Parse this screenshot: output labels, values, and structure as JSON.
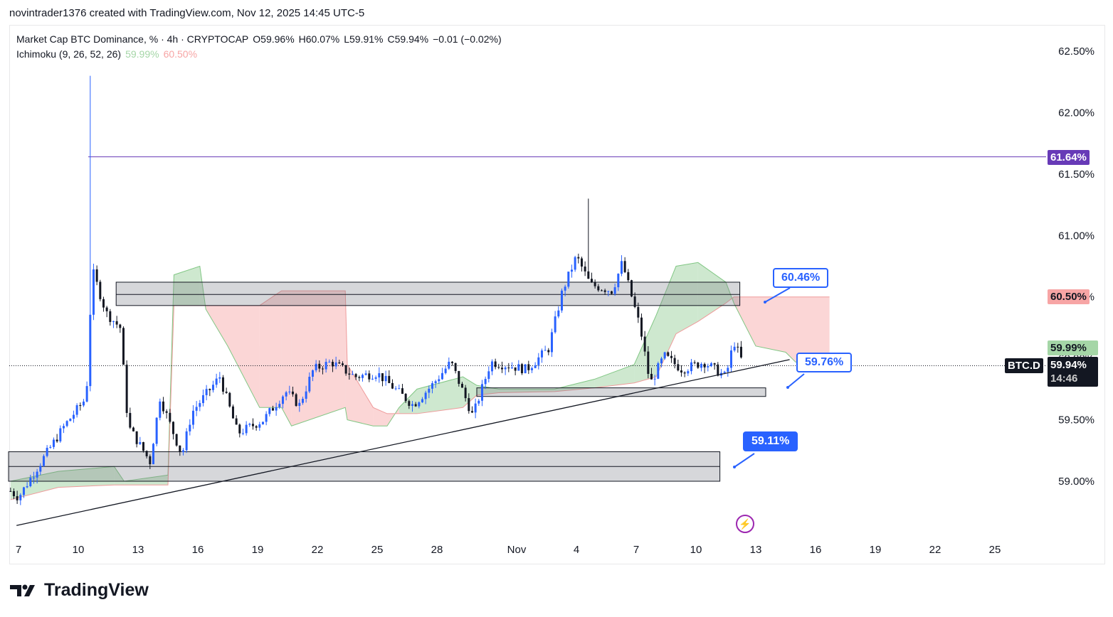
{
  "header": "novintrader1376 created with TradingView.com, Nov 12, 2025 14:45 UTC-5",
  "legend": {
    "symbol": "Market Cap BTC Dominance, % · 4h · CRYPTOCAP",
    "open": "O59.96%",
    "high": "H60.07%",
    "low": "L59.91%",
    "close": "C59.94%",
    "change": "−0.01 (−0.02%)",
    "indicator": "Ichimoku (9, 26, 52, 26)",
    "span_a": "59.99%",
    "span_b": "60.50%"
  },
  "tags": {
    "purple_line": "61.64%",
    "span_b": "60.50%",
    "span_a": "59.99%",
    "symbol": "BTC.D",
    "last": "59.94%",
    "countdown": "14:46"
  },
  "callouts": {
    "c1": "60.46%",
    "c2": "59.76%",
    "c3": "59.11%"
  },
  "logo": "TradingView",
  "colors": {
    "up": "#2962ff",
    "down": "#131722",
    "cloud_green": "#a5d6a7",
    "cloud_red": "#f7b5b5",
    "purple": "#673ab7",
    "accent": "#2962ff"
  },
  "chart_data": {
    "type": "candlestick",
    "yaxis": {
      "ticks": [
        "62.50%",
        "62.00%",
        "61.50%",
        "61.00%",
        "60.50%",
        "60.00%",
        "59.50%",
        "59.00%"
      ],
      "tick_values": [
        62.5,
        62.0,
        61.5,
        61.0,
        60.5,
        60.0,
        59.5,
        59.0
      ],
      "range": [
        58.6,
        62.6
      ]
    },
    "xaxis": {
      "labels": [
        "7",
        "10",
        "13",
        "16",
        "19",
        "22",
        "25",
        "28",
        "Nov",
        "4",
        "7",
        "10",
        "13",
        "16",
        "19",
        "22",
        "25"
      ],
      "label_days": [
        0,
        3,
        6,
        9,
        12,
        15,
        18,
        21,
        25,
        28,
        31,
        34,
        37,
        40,
        43,
        46,
        49
      ],
      "note": "days since Oct 7"
    },
    "close_path": [
      [
        -0.4,
        58.92
      ],
      [
        0,
        58.87
      ],
      [
        0.9,
        59.1
      ],
      [
        2.3,
        59.45
      ],
      [
        3.4,
        59.68
      ],
      [
        3.7,
        60.72
      ],
      [
        4.4,
        60.37
      ],
      [
        5.1,
        60.25
      ],
      [
        5.5,
        59.45
      ],
      [
        6.6,
        59.16
      ],
      [
        7.1,
        59.68
      ],
      [
        8.2,
        59.21
      ],
      [
        8.7,
        59.56
      ],
      [
        10.1,
        59.85
      ],
      [
        11,
        59.39
      ],
      [
        12.3,
        59.5
      ],
      [
        13.4,
        59.73
      ],
      [
        14.1,
        59.62
      ],
      [
        14.8,
        59.91
      ],
      [
        15.7,
        59.97
      ],
      [
        16.9,
        59.85
      ],
      [
        18,
        59.88
      ],
      [
        19.8,
        59.62
      ],
      [
        20.8,
        59.79
      ],
      [
        21.7,
        59.97
      ],
      [
        22.8,
        59.53
      ],
      [
        23.7,
        59.97
      ],
      [
        25.5,
        59.91
      ],
      [
        26.6,
        60.08
      ],
      [
        27.3,
        60.55
      ],
      [
        28,
        60.83
      ],
      [
        28.7,
        60.6
      ],
      [
        29.8,
        60.55
      ],
      [
        30.3,
        60.78
      ],
      [
        31.2,
        60.25
      ],
      [
        31.7,
        59.79
      ],
      [
        32.4,
        60.02
      ],
      [
        33.3,
        59.91
      ],
      [
        34.4,
        59.97
      ],
      [
        35.5,
        59.85
      ],
      [
        35.9,
        60.14
      ],
      [
        36.4,
        59.94
      ]
    ],
    "spikes": [
      {
        "day": 3.6,
        "high": 62.3
      },
      {
        "day": 28.6,
        "high": 61.3
      }
    ],
    "ichimoku_cloud": [
      [
        -0.4,
        59.0,
        58.85
      ],
      [
        2,
        59.08,
        58.95
      ],
      [
        4.8,
        59.12,
        58.97
      ],
      [
        5.3,
        59.0,
        58.97
      ],
      [
        7.5,
        59.05,
        58.97
      ],
      [
        7.8,
        60.68,
        60.43
      ],
      [
        9.1,
        60.75,
        60.43
      ],
      [
        9.4,
        60.4,
        60.43
      ],
      [
        10.5,
        60.1,
        60.43
      ],
      [
        12.1,
        59.6,
        60.43
      ],
      [
        13.2,
        59.6,
        60.55
      ],
      [
        13.7,
        59.45,
        60.55
      ],
      [
        16.4,
        59.6,
        60.55
      ],
      [
        16.5,
        59.5,
        59.95
      ],
      [
        17.8,
        59.45,
        59.6
      ],
      [
        18.5,
        59.45,
        59.55
      ],
      [
        19.1,
        59.6,
        59.55
      ],
      [
        20,
        59.75,
        59.55
      ],
      [
        22.3,
        59.85,
        59.6
      ],
      [
        23,
        59.78,
        59.7
      ],
      [
        24.1,
        59.75,
        59.72
      ],
      [
        26.9,
        59.75,
        59.73
      ],
      [
        28.9,
        59.83,
        59.76
      ],
      [
        30.9,
        59.95,
        59.8
      ],
      [
        32,
        60.35,
        59.85
      ],
      [
        33,
        60.75,
        60.2
      ],
      [
        34.1,
        60.78,
        60.3
      ],
      [
        35.5,
        60.62,
        60.45
      ],
      [
        35.9,
        60.45,
        60.5
      ],
      [
        37,
        60.1,
        60.5
      ],
      [
        38.5,
        60.05,
        60.5
      ],
      [
        39,
        59.97,
        60.5
      ],
      [
        40.7,
        59.98,
        60.5
      ]
    ],
    "zones": [
      {
        "from": 4.9,
        "to": 36.2,
        "low": 60.43,
        "high": 60.62,
        "mid": 60.52
      },
      {
        "from": 23,
        "to": 37.5,
        "low": 59.69,
        "high": 59.76
      },
      {
        "from": -0.5,
        "to": 35.2,
        "low": 59.0,
        "high": 59.24,
        "mid": 59.12
      }
    ],
    "trendline": [
      [
        -0.1,
        58.64
      ],
      [
        38.7,
        59.99
      ]
    ],
    "horizontal_line": {
      "from": 3.5,
      "value": 61.64
    },
    "last_price": 59.94
  }
}
